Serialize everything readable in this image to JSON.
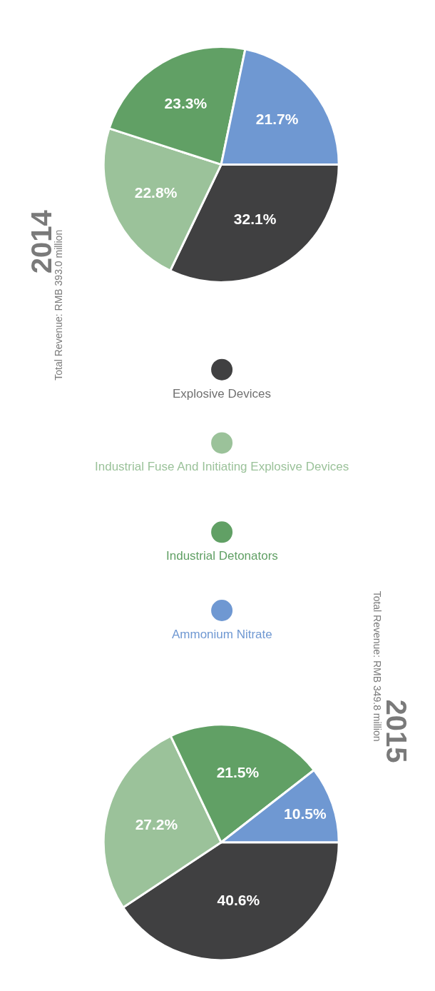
{
  "chart_data": [
    {
      "type": "pie",
      "title": "2014",
      "subtitle": "Total Revenue: RMB 393.0 million",
      "categories": [
        "Explosive Devices",
        "Industrial Fuse And Initiating Explosive Devices",
        "Industrial Detonators",
        "Ammonium Nitrate"
      ],
      "values": [
        32.1,
        22.8,
        23.3,
        21.7
      ],
      "value_labels": [
        "32.1%",
        "22.8%",
        "23.3%",
        "21.7%"
      ],
      "colors": [
        "#404041",
        "#9bc29a",
        "#61a065",
        "#6f98d2"
      ],
      "legend": "bottom"
    },
    {
      "type": "pie",
      "title": "2015",
      "subtitle": "Total Revenue: RMB 349.8 million",
      "categories": [
        null,
        null,
        null,
        null
      ],
      "values": [
        40.6,
        27.2,
        21.5,
        10.5
      ],
      "value_labels": [
        "40.6%",
        "27.2%",
        "21.5%",
        "10.5%"
      ],
      "colors": [
        "#404041",
        "#9bc29a",
        "#61a065",
        "#6f98d2"
      ]
    }
  ]
}
